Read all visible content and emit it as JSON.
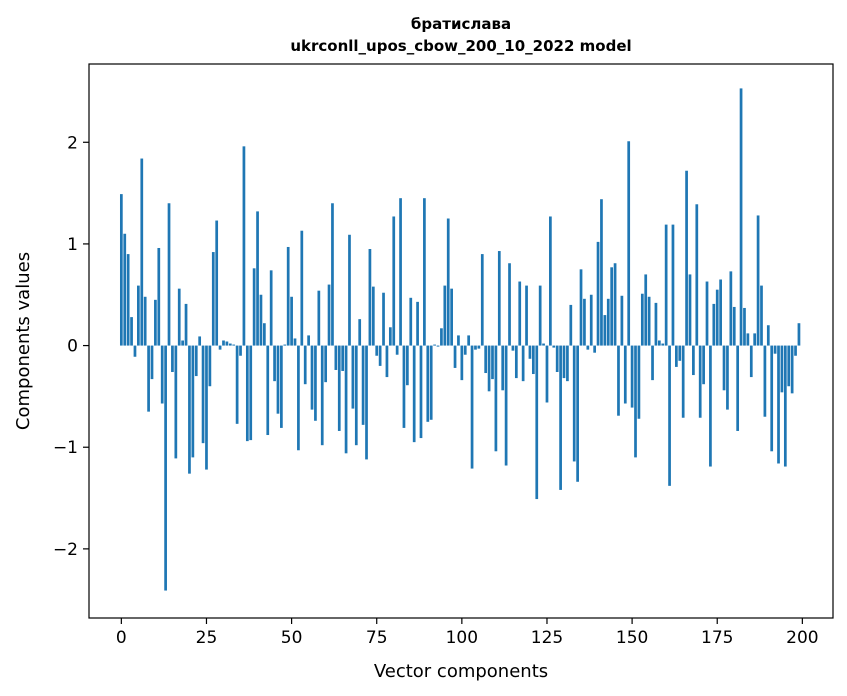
{
  "chart_data": {
    "type": "bar",
    "title": "братислава",
    "subtitle": "ukrconll_upos_cbow_200_10_2022 model",
    "xlabel": "Vector components",
    "ylabel": "Components values",
    "xlim": [
      -9.5,
      209
    ],
    "ylim": [
      -2.68,
      2.77
    ],
    "xticks": [
      0,
      25,
      50,
      75,
      100,
      125,
      150,
      175,
      200
    ],
    "xtick_labels": [
      "0",
      "25",
      "50",
      "75",
      "100",
      "125",
      "150",
      "175",
      "200"
    ],
    "yticks": [
      -2,
      -1,
      0,
      1,
      2
    ],
    "ytick_labels": [
      "−2",
      "−1",
      "0",
      "1",
      "2"
    ],
    "grid": false,
    "legend": "none",
    "bar_color": "#1f77b4",
    "series": [
      {
        "values": [
          1.49,
          1.1,
          0.9,
          0.28,
          -0.11,
          0.59,
          1.84,
          0.48,
          -0.65,
          -0.33,
          0.45,
          0.96,
          -0.57,
          -2.41,
          1.4,
          -0.26,
          -1.11,
          0.56,
          0.05,
          0.41,
          -1.26,
          -1.1,
          -0.3,
          0.09,
          -0.96,
          -1.22,
          -0.4,
          0.92,
          1.23,
          -0.04,
          0.05,
          0.04,
          0.02,
          0.01,
          -0.77,
          -0.1,
          1.96,
          -0.94,
          -0.93,
          0.76,
          1.32,
          0.5,
          0.22,
          -0.88,
          0.74,
          -0.35,
          -0.67,
          -0.81,
          0.01,
          0.97,
          0.48,
          0.07,
          -1.03,
          1.13,
          -0.38,
          0.1,
          -0.63,
          -0.74,
          0.54,
          -0.98,
          -0.36,
          0.6,
          1.4,
          -0.24,
          -0.84,
          -0.25,
          -1.06,
          1.09,
          -0.62,
          -0.98,
          0.26,
          -0.78,
          -1.12,
          0.95,
          0.58,
          -0.1,
          -0.2,
          0.52,
          -0.31,
          0.18,
          1.27,
          -0.09,
          1.45,
          -0.81,
          -0.39,
          0.47,
          -0.95,
          0.43,
          -0.91,
          1.45,
          -0.75,
          -0.73,
          0.01,
          -0.01,
          0.17,
          0.59,
          1.25,
          0.56,
          -0.22,
          0.1,
          -0.34,
          -0.09,
          0.1,
          -1.21,
          -0.04,
          -0.03,
          0.9,
          -0.27,
          -0.45,
          -0.33,
          -1.04,
          0.93,
          -0.44,
          -1.18,
          0.81,
          -0.05,
          -0.32,
          0.63,
          -0.35,
          0.59,
          -0.13,
          -0.28,
          -1.51,
          0.59,
          0.02,
          -0.56,
          1.27,
          -0.02,
          -0.26,
          -1.42,
          -0.32,
          -0.35,
          0.4,
          -1.14,
          -1.34,
          0.75,
          0.46,
          -0.04,
          0.5,
          -0.07,
          1.02,
          1.44,
          0.3,
          0.46,
          0.77,
          0.81,
          -0.69,
          0.49,
          -0.57,
          2.01,
          -0.61,
          -1.1,
          -0.72,
          0.51,
          0.7,
          0.48,
          -0.34,
          0.42,
          0.05,
          0.02,
          1.19,
          -1.38,
          1.19,
          -0.21,
          -0.15,
          -0.71,
          1.72,
          0.7,
          -0.29,
          1.39,
          -0.71,
          -0.38,
          0.63,
          -1.19,
          0.41,
          0.55,
          0.65,
          -0.44,
          -0.63,
          0.73,
          0.38,
          -0.84,
          2.53,
          0.37,
          0.12,
          -0.31,
          0.12,
          1.28,
          0.59,
          -0.7,
          0.2,
          -1.04,
          -0.08,
          -1.16,
          -0.46,
          -1.19,
          -0.4,
          -0.47,
          -0.1,
          0.22
        ]
      }
    ]
  }
}
